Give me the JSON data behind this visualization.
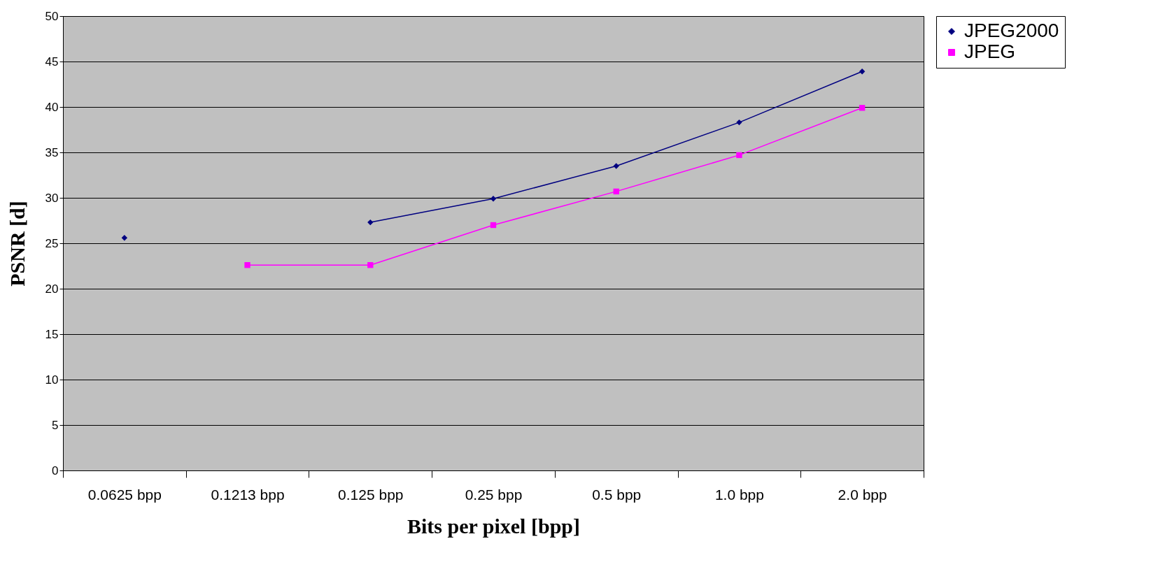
{
  "chart_data": {
    "type": "line",
    "xlabel": "Bits per pixel [bpp]",
    "ylabel": "PSNR [d]",
    "categories": [
      "0.0625 bpp",
      "0.1213 bpp",
      "0.125 bpp",
      "0.25 bpp",
      "0.5 bpp",
      "1.0 bpp",
      "2.0 bpp"
    ],
    "series": [
      {
        "name": "JPEG2000",
        "color": "#000080",
        "marker": "diamond",
        "values": [
          25.6,
          null,
          27.3,
          29.9,
          33.5,
          38.3,
          43.9
        ]
      },
      {
        "name": "JPEG",
        "color": "#ff00ff",
        "marker": "square",
        "values": [
          null,
          22.6,
          22.6,
          27.0,
          30.7,
          34.7,
          39.9
        ]
      }
    ],
    "ylim": [
      0,
      50
    ],
    "yticks": [
      0,
      5,
      10,
      15,
      20,
      25,
      30,
      35,
      40,
      45,
      50
    ],
    "grid": "y",
    "legend": "right",
    "line_style": "solid"
  }
}
